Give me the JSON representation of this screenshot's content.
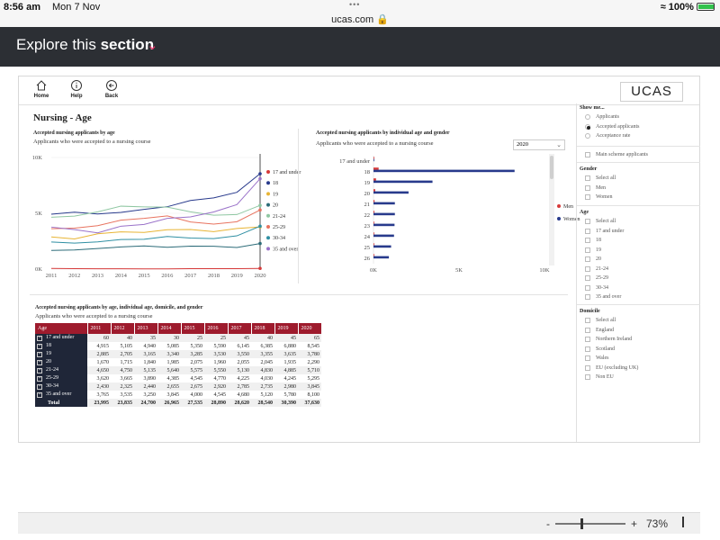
{
  "statusbar": {
    "time": "8:56 am",
    "date": "Mon 7 Nov",
    "url": "ucas.com",
    "battery": "100%",
    "tabs_dots": "•••"
  },
  "nav": {
    "title_prefix": "Explore this",
    "title_bold": "section",
    "chevron": "⌄"
  },
  "toolbar": {
    "home": "Home",
    "help": "Help",
    "back": "Back",
    "logo": "UCAS"
  },
  "page_title": "Nursing - Age",
  "line_chart": {
    "title": "Accepted nursing applicants by age",
    "subtitle": "Applicants who were accepted to a nursing course",
    "y_ticks": [
      "10K",
      "5K",
      "0K"
    ],
    "x_ticks": [
      "2011",
      "2012",
      "2013",
      "2014",
      "2015",
      "2016",
      "2017",
      "2018",
      "2019",
      "2020"
    ]
  },
  "bar_chart": {
    "title": "Accepted nursing applicants by individual age and gender",
    "subtitle": "Applicants who were accepted to a nursing course",
    "year_selected": "2020",
    "categories": [
      "17 and under",
      "18",
      "19",
      "20",
      "21",
      "22",
      "23",
      "24",
      "25",
      "26"
    ],
    "x_ticks": [
      "0K",
      "5K",
      "10K"
    ],
    "legend": [
      "Men",
      "Women"
    ]
  },
  "table_visual": {
    "title": "Accepted nursing applicants by age, individual age, domicile, and gender",
    "subtitle": "Applicants who were accepted to a nursing course",
    "header_first": "Age",
    "total_label": "Total"
  },
  "chart_data": [
    {
      "type": "line",
      "title": "Accepted nursing applicants by age",
      "x": [
        2011,
        2012,
        2013,
        2014,
        2015,
        2016,
        2017,
        2018,
        2019,
        2020
      ],
      "ylim": [
        0,
        10000
      ],
      "series": [
        {
          "name": "17 and under",
          "color": "#d63a3a",
          "values": [
            60,
            40,
            35,
            30,
            25,
            25,
            45,
            40,
            45,
            65
          ]
        },
        {
          "name": "18",
          "color": "#283a8c",
          "values": [
            4915,
            5105,
            4940,
            5085,
            5350,
            5590,
            6145,
            6385,
            6880,
            8545
          ]
        },
        {
          "name": "19",
          "color": "#e8b434",
          "values": [
            2885,
            2705,
            3165,
            3340,
            3285,
            3530,
            3550,
            3355,
            3635,
            3780
          ]
        },
        {
          "name": "20",
          "color": "#2c6b78",
          "values": [
            1670,
            1715,
            1840,
            1985,
            2075,
            1960,
            2055,
            2045,
            1935,
            2290
          ]
        },
        {
          "name": "21-24",
          "color": "#8fc7a2",
          "values": [
            4650,
            4750,
            5135,
            5640,
            5575,
            5550,
            5130,
            4830,
            4885,
            5710
          ]
        },
        {
          "name": "25-29",
          "color": "#e8735f",
          "values": [
            3620,
            3665,
            3890,
            4385,
            4545,
            4770,
            4225,
            4030,
            4245,
            5295
          ]
        },
        {
          "name": "30-34",
          "color": "#2f8fa3",
          "values": [
            2430,
            2325,
            2440,
            2655,
            2675,
            2920,
            2785,
            2735,
            2980,
            3845
          ]
        },
        {
          "name": "35 and over",
          "color": "#9a72c9",
          "values": [
            3765,
            3535,
            3250,
            3845,
            4000,
            4545,
            4680,
            5120,
            5780,
            8100
          ]
        }
      ]
    },
    {
      "type": "bar",
      "title": "Accepted nursing applicants by individual age and gender",
      "categories": [
        "17 and under",
        "18",
        "19",
        "20",
        "21",
        "22",
        "23",
        "24",
        "25",
        "26"
      ],
      "xlim": [
        0,
        10000
      ],
      "series": [
        {
          "name": "Men",
          "color": "#d63a3a",
          "values": [
            5,
            300,
            150,
            100,
            60,
            50,
            40,
            40,
            30,
            30
          ]
        },
        {
          "name": "Women",
          "color": "#283a8c",
          "values": [
            40,
            8250,
            3450,
            2050,
            1250,
            1250,
            1230,
            1200,
            1030,
            900
          ]
        }
      ]
    },
    {
      "type": "table",
      "columns": [
        "Age",
        "2011",
        "2012",
        "2013",
        "2014",
        "2015",
        "2016",
        "2017",
        "2018",
        "2019",
        "2020"
      ],
      "rows": [
        {
          "label": "17 and under",
          "values": [
            "60",
            "40",
            "35",
            "30",
            "25",
            "25",
            "45",
            "40",
            "45",
            "65"
          ]
        },
        {
          "label": "18",
          "values": [
            "4,915",
            "5,105",
            "4,940",
            "5,085",
            "5,350",
            "5,590",
            "6,145",
            "6,385",
            "6,880",
            "8,545"
          ]
        },
        {
          "label": "19",
          "values": [
            "2,885",
            "2,705",
            "3,165",
            "3,340",
            "3,285",
            "3,530",
            "3,550",
            "3,355",
            "3,635",
            "3,780"
          ]
        },
        {
          "label": "20",
          "values": [
            "1,670",
            "1,715",
            "1,840",
            "1,985",
            "2,075",
            "1,960",
            "2,055",
            "2,045",
            "1,935",
            "2,290"
          ]
        },
        {
          "label": "21-24",
          "values": [
            "4,650",
            "4,750",
            "5,135",
            "5,640",
            "5,575",
            "5,550",
            "5,130",
            "4,830",
            "4,885",
            "5,710"
          ]
        },
        {
          "label": "25-29",
          "values": [
            "3,620",
            "3,665",
            "3,890",
            "4,385",
            "4,545",
            "4,770",
            "4,225",
            "4,030",
            "4,245",
            "5,295"
          ]
        },
        {
          "label": "30-34",
          "values": [
            "2,430",
            "2,325",
            "2,440",
            "2,655",
            "2,675",
            "2,920",
            "2,785",
            "2,735",
            "2,980",
            "3,845"
          ]
        },
        {
          "label": "35 and over",
          "values": [
            "3,765",
            "3,535",
            "3,250",
            "3,845",
            "4,000",
            "4,545",
            "4,680",
            "5,120",
            "5,780",
            "8,100"
          ]
        }
      ],
      "total": {
        "label": "Total",
        "values": [
          "23,995",
          "23,835",
          "24,700",
          "26,965",
          "27,535",
          "28,890",
          "28,620",
          "28,540",
          "30,390",
          "37,630"
        ]
      }
    }
  ],
  "filters": {
    "show_me": {
      "title": "Show me...",
      "options": [
        "Applicants",
        "Accepted applicants",
        "Acceptance rate"
      ],
      "selected": "Accepted applicants"
    },
    "main_scheme": "Main scheme applicants",
    "gender": {
      "title": "Gender",
      "options": [
        "Select all",
        "Men",
        "Women"
      ]
    },
    "age": {
      "title": "Age",
      "options": [
        "Select all",
        "17 and under",
        "18",
        "19",
        "20",
        "21-24",
        "25-29",
        "30-34",
        "35 and over"
      ]
    },
    "domicile": {
      "title": "Domicile",
      "options": [
        "Select all",
        "England",
        "Northern Ireland",
        "Scotland",
        "Wales",
        "EU (excluding UK)",
        "Non EU"
      ]
    }
  },
  "zoom": {
    "minus": "-",
    "plus": "+",
    "value": "73%"
  }
}
